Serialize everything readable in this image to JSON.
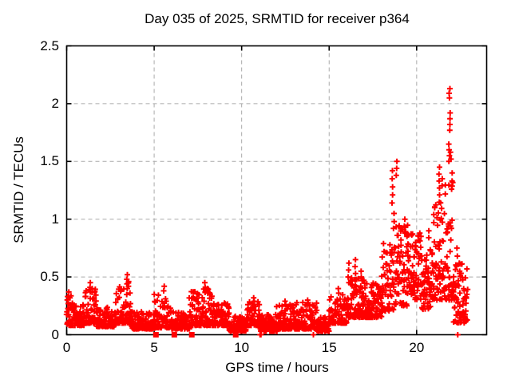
{
  "chart_data": {
    "type": "scatter",
    "title": "Day 035 of 2025, SRMTID for receiver p364",
    "xlabel": "GPS time / hours",
    "ylabel": "SRMTID / TECUs",
    "xlim": [
      0,
      24
    ],
    "ylim": [
      0,
      2.5
    ],
    "xticks": [
      {
        "v": 0,
        "label": "0"
      },
      {
        "v": 5,
        "label": "5"
      },
      {
        "v": 10,
        "label": "10"
      },
      {
        "v": 15,
        "label": "15"
      },
      {
        "v": 20,
        "label": "20"
      }
    ],
    "yticks": [
      {
        "v": 0,
        "label": "0"
      },
      {
        "v": 0.5,
        "label": "0.5"
      },
      {
        "v": 1,
        "label": "1"
      },
      {
        "v": 1.5,
        "label": "1.5"
      },
      {
        "v": 2,
        "label": "2"
      },
      {
        "v": 2.5,
        "label": "2.5"
      }
    ],
    "grid": true,
    "legend": "none",
    "colors": {
      "marker": "#ff0000",
      "grid": "#aaaaaa",
      "border": "#000000",
      "background": "#ffffff",
      "text": "#000000"
    },
    "marker": {
      "shape": "plus",
      "size": 7,
      "stroke": 2
    },
    "seed": 2025035,
    "dt": 0.02,
    "bias_default": 2.2,
    "envelope": [
      {
        "t0": 0.0,
        "t1": 0.35,
        "lo": 0.08,
        "hi": 0.35,
        "bias": 2.0,
        "density": 0.7
      },
      {
        "t0": 0.35,
        "t1": 1.0,
        "lo": 0.08,
        "hi": 0.26,
        "bias": 2.2,
        "density": 0.7
      },
      {
        "t0": 1.0,
        "t1": 1.7,
        "lo": 0.1,
        "hi": 0.4,
        "bias": 2.2,
        "density": 0.7
      },
      {
        "t0": 1.7,
        "t1": 2.8,
        "lo": 0.07,
        "hi": 0.24,
        "bias": 2.2,
        "density": 0.7
      },
      {
        "t0": 2.8,
        "t1": 3.7,
        "lo": 0.1,
        "hi": 0.45,
        "bias": 2.3,
        "density": 0.7
      },
      {
        "t0": 3.7,
        "t1": 5.0,
        "lo": 0.05,
        "hi": 0.2,
        "bias": 2.2,
        "density": 0.7
      },
      {
        "t0": 5.0,
        "t1": 6.0,
        "lo": 0.06,
        "hi": 0.35,
        "bias": 2.4,
        "density": 0.7
      },
      {
        "t0": 6.0,
        "t1": 7.0,
        "lo": 0.05,
        "hi": 0.2,
        "bias": 2.2,
        "density": 0.7
      },
      {
        "t0": 7.0,
        "t1": 8.3,
        "lo": 0.08,
        "hi": 0.4,
        "bias": 2.3,
        "density": 0.7
      },
      {
        "t0": 8.3,
        "t1": 9.3,
        "lo": 0.08,
        "hi": 0.28,
        "bias": 2.2,
        "density": 0.7
      },
      {
        "t0": 9.3,
        "t1": 10.3,
        "lo": 0.03,
        "hi": 0.16,
        "bias": 2.0,
        "density": 0.7
      },
      {
        "t0": 10.3,
        "t1": 11.0,
        "lo": 0.08,
        "hi": 0.3,
        "bias": 2.3,
        "density": 0.7
      },
      {
        "t0": 11.0,
        "t1": 12.0,
        "lo": 0.03,
        "hi": 0.18,
        "bias": 2.0,
        "density": 0.7
      },
      {
        "t0": 12.0,
        "t1": 13.0,
        "lo": 0.05,
        "hi": 0.26,
        "bias": 2.2,
        "density": 0.7
      },
      {
        "t0": 13.0,
        "t1": 14.3,
        "lo": 0.05,
        "hi": 0.28,
        "bias": 2.2,
        "density": 0.7
      },
      {
        "t0": 14.3,
        "t1": 15.0,
        "lo": 0.03,
        "hi": 0.15,
        "bias": 2.0,
        "density": 0.7
      },
      {
        "t0": 15.0,
        "t1": 16.0,
        "lo": 0.1,
        "hi": 0.35,
        "bias": 2.0,
        "density": 0.7
      },
      {
        "t0": 16.0,
        "t1": 17.0,
        "lo": 0.15,
        "hi": 0.5,
        "bias": 2.0,
        "density": 0.7
      },
      {
        "t0": 17.0,
        "t1": 18.0,
        "lo": 0.15,
        "hi": 0.45,
        "bias": 1.8,
        "density": 0.7
      },
      {
        "t0": 18.0,
        "t1": 18.8,
        "lo": 0.2,
        "hi": 0.8,
        "bias": 1.6,
        "density": 0.7
      },
      {
        "t0": 18.8,
        "t1": 19.5,
        "lo": 0.25,
        "hi": 0.95,
        "bias": 1.4,
        "density": 0.8
      },
      {
        "t0": 19.5,
        "t1": 20.3,
        "lo": 0.3,
        "hi": 0.88,
        "bias": 1.3,
        "density": 0.8
      },
      {
        "t0": 20.3,
        "t1": 20.9,
        "lo": 0.22,
        "hi": 0.75,
        "bias": 1.5,
        "density": 0.7
      },
      {
        "t0": 20.9,
        "t1": 21.6,
        "lo": 0.3,
        "hi": 1.15,
        "bias": 1.5,
        "density": 0.8
      },
      {
        "t0": 21.6,
        "t1": 22.1,
        "lo": 0.3,
        "hi": 1.42,
        "bias": 1.6,
        "density": 0.8
      },
      {
        "t0": 22.1,
        "t1": 22.9,
        "lo": 0.1,
        "hi": 0.62,
        "bias": 1.5,
        "density": 0.9
      }
    ],
    "spikes": [
      {
        "t": 0.12,
        "values": [
          0.37,
          0.33
        ]
      },
      {
        "t": 1.35,
        "values": [
          0.45,
          0.41,
          0.37
        ]
      },
      {
        "t": 3.45,
        "values": [
          0.52,
          0.48,
          0.44,
          0.4
        ]
      },
      {
        "t": 3.55,
        "values": [
          0.46,
          0.42
        ]
      },
      {
        "t": 5.55,
        "values": [
          0.42,
          0.38
        ]
      },
      {
        "t": 7.9,
        "values": [
          0.45,
          0.41,
          0.37
        ]
      },
      {
        "t": 8.05,
        "values": [
          0.4,
          0.36
        ]
      },
      {
        "t": 10.7,
        "values": [
          0.32,
          0.29
        ]
      },
      {
        "t": 12.5,
        "values": [
          0.29,
          0.26
        ]
      },
      {
        "t": 13.8,
        "values": [
          0.3,
          0.27
        ]
      },
      {
        "t": 15.55,
        "values": [
          0.4,
          0.36
        ]
      },
      {
        "t": 16.1,
        "values": [
          0.62,
          0.56,
          0.5,
          0.45
        ]
      },
      {
        "t": 16.5,
        "values": [
          0.65,
          0.59,
          0.53
        ]
      },
      {
        "t": 16.85,
        "values": [
          0.55,
          0.5
        ]
      },
      {
        "t": 18.6,
        "values": [
          1.42,
          1.35,
          1.28,
          1.21,
          1.14
        ]
      },
      {
        "t": 18.7,
        "values": [
          1.05,
          0.98,
          0.92
        ]
      },
      {
        "t": 18.85,
        "values": [
          1.5,
          1.44,
          1.38
        ]
      },
      {
        "t": 19.3,
        "values": [
          1.0,
          0.94,
          0.88
        ]
      },
      {
        "t": 20.7,
        "values": [
          0.9,
          0.84
        ]
      },
      {
        "t": 21.0,
        "values": [
          1.1,
          1.04,
          0.97
        ]
      },
      {
        "t": 21.3,
        "values": [
          1.45,
          1.39,
          1.33,
          1.27,
          1.21
        ]
      },
      {
        "t": 21.45,
        "values": [
          1.35,
          1.29
        ]
      },
      {
        "t": 21.85,
        "values": [
          1.65,
          1.6,
          1.55,
          1.5
        ]
      },
      {
        "t": 21.88,
        "values": [
          2.13,
          2.09,
          2.05
        ]
      },
      {
        "t": 21.92,
        "values": [
          1.92,
          1.87,
          1.82,
          1.77
        ]
      },
      {
        "t": 21.95,
        "values": [
          1.58,
          1.52
        ]
      },
      {
        "t": 22.0,
        "values": [
          1.4,
          1.33,
          1.26
        ]
      },
      {
        "t": 22.3,
        "values": [
          0.75,
          0.68
        ]
      },
      {
        "t": 22.45,
        "values": [
          0.62,
          0.55
        ]
      }
    ],
    "zero_squares": [
      5.1,
      6.15,
      7.15,
      9.66
    ],
    "zero_plus": [
      11.05,
      11.1,
      14.1,
      22.35
    ]
  }
}
